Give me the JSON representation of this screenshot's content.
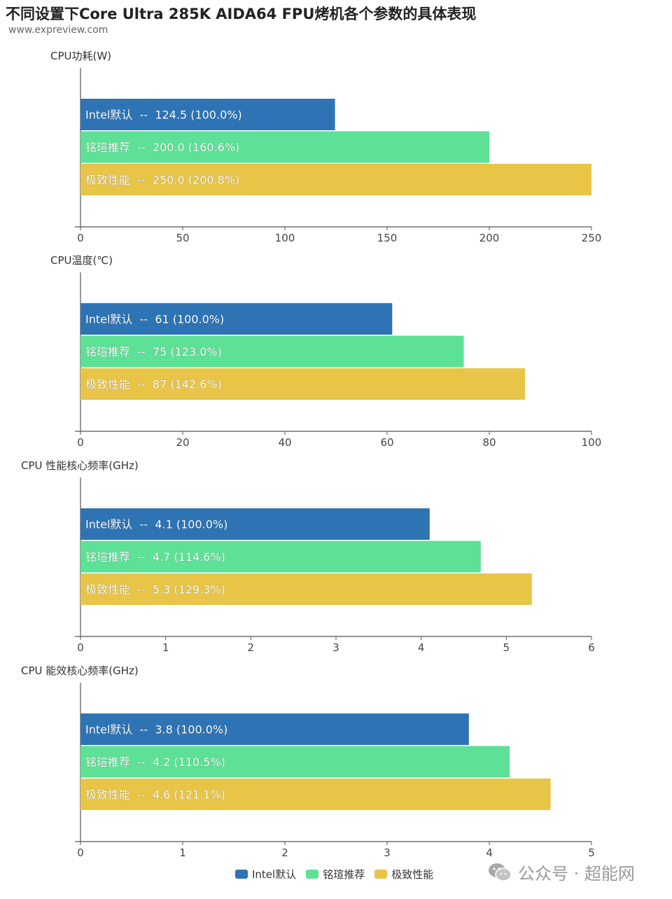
{
  "title": "不同设置下Core Ultra 285K AIDA64 FPU烤机各个参数的具体表现",
  "source": "www.expreview.com",
  "colors": {
    "Intel默认": "#2e74b5",
    "铭瑄推荐": "#5ce196",
    "极致性能": "#e8c547"
  },
  "legend": [
    "Intel默认",
    "铭瑄推荐",
    "极致性能"
  ],
  "watermark": {
    "text": "公众号 · 超能网",
    "icon": "wechat-icon"
  },
  "chart_data": [
    {
      "type": "bar",
      "orientation": "horizontal",
      "title": "CPU功耗(W)",
      "series": [
        "Intel默认",
        "铭瑄推荐",
        "极致性能"
      ],
      "values": [
        124.5,
        200.0,
        250.0
      ],
      "labels": [
        "Intel默认  --  124.5 (100.0%)",
        "铭瑄推荐  --  200.0 (160.6%)",
        "极致性能  --  250.0 (200.8%)"
      ],
      "xlim": [
        0,
        250
      ],
      "ticks": [
        "0",
        "50",
        "100",
        "150",
        "200",
        "250"
      ]
    },
    {
      "type": "bar",
      "orientation": "horizontal",
      "title": "CPU温度(℃)",
      "series": [
        "Intel默认",
        "铭瑄推荐",
        "极致性能"
      ],
      "values": [
        61,
        75,
        87
      ],
      "labels": [
        "Intel默认  --  61 (100.0%)",
        "铭瑄推荐  --  75 (123.0%)",
        "极致性能  --  87 (142.6%)"
      ],
      "xlim": [
        0,
        100
      ],
      "ticks": [
        "0",
        "20",
        "40",
        "60",
        "80",
        "100"
      ]
    },
    {
      "type": "bar",
      "orientation": "horizontal",
      "title": "CPU 性能核心频率(GHz)",
      "series": [
        "Intel默认",
        "铭瑄推荐",
        "极致性能"
      ],
      "values": [
        4.1,
        4.7,
        5.3
      ],
      "labels": [
        "Intel默认  --  4.1 (100.0%)",
        "铭瑄推荐  --  4.7 (114.6%)",
        "极致性能  --  5.3 (129.3%)"
      ],
      "xlim": [
        0,
        6
      ],
      "ticks": [
        "0",
        "1",
        "2",
        "3",
        "4",
        "5",
        "6"
      ]
    },
    {
      "type": "bar",
      "orientation": "horizontal",
      "title": "CPU 能效核心频率(GHz)",
      "series": [
        "Intel默认",
        "铭瑄推荐",
        "极致性能"
      ],
      "values": [
        3.8,
        4.2,
        4.6
      ],
      "labels": [
        "Intel默认  --  3.8 (100.0%)",
        "铭瑄推荐  --  4.2 (110.5%)",
        "极致性能  --  4.6 (121.1%)"
      ],
      "xlim": [
        0,
        5
      ],
      "ticks": [
        "0",
        "1",
        "2",
        "3",
        "4",
        "5"
      ]
    }
  ]
}
